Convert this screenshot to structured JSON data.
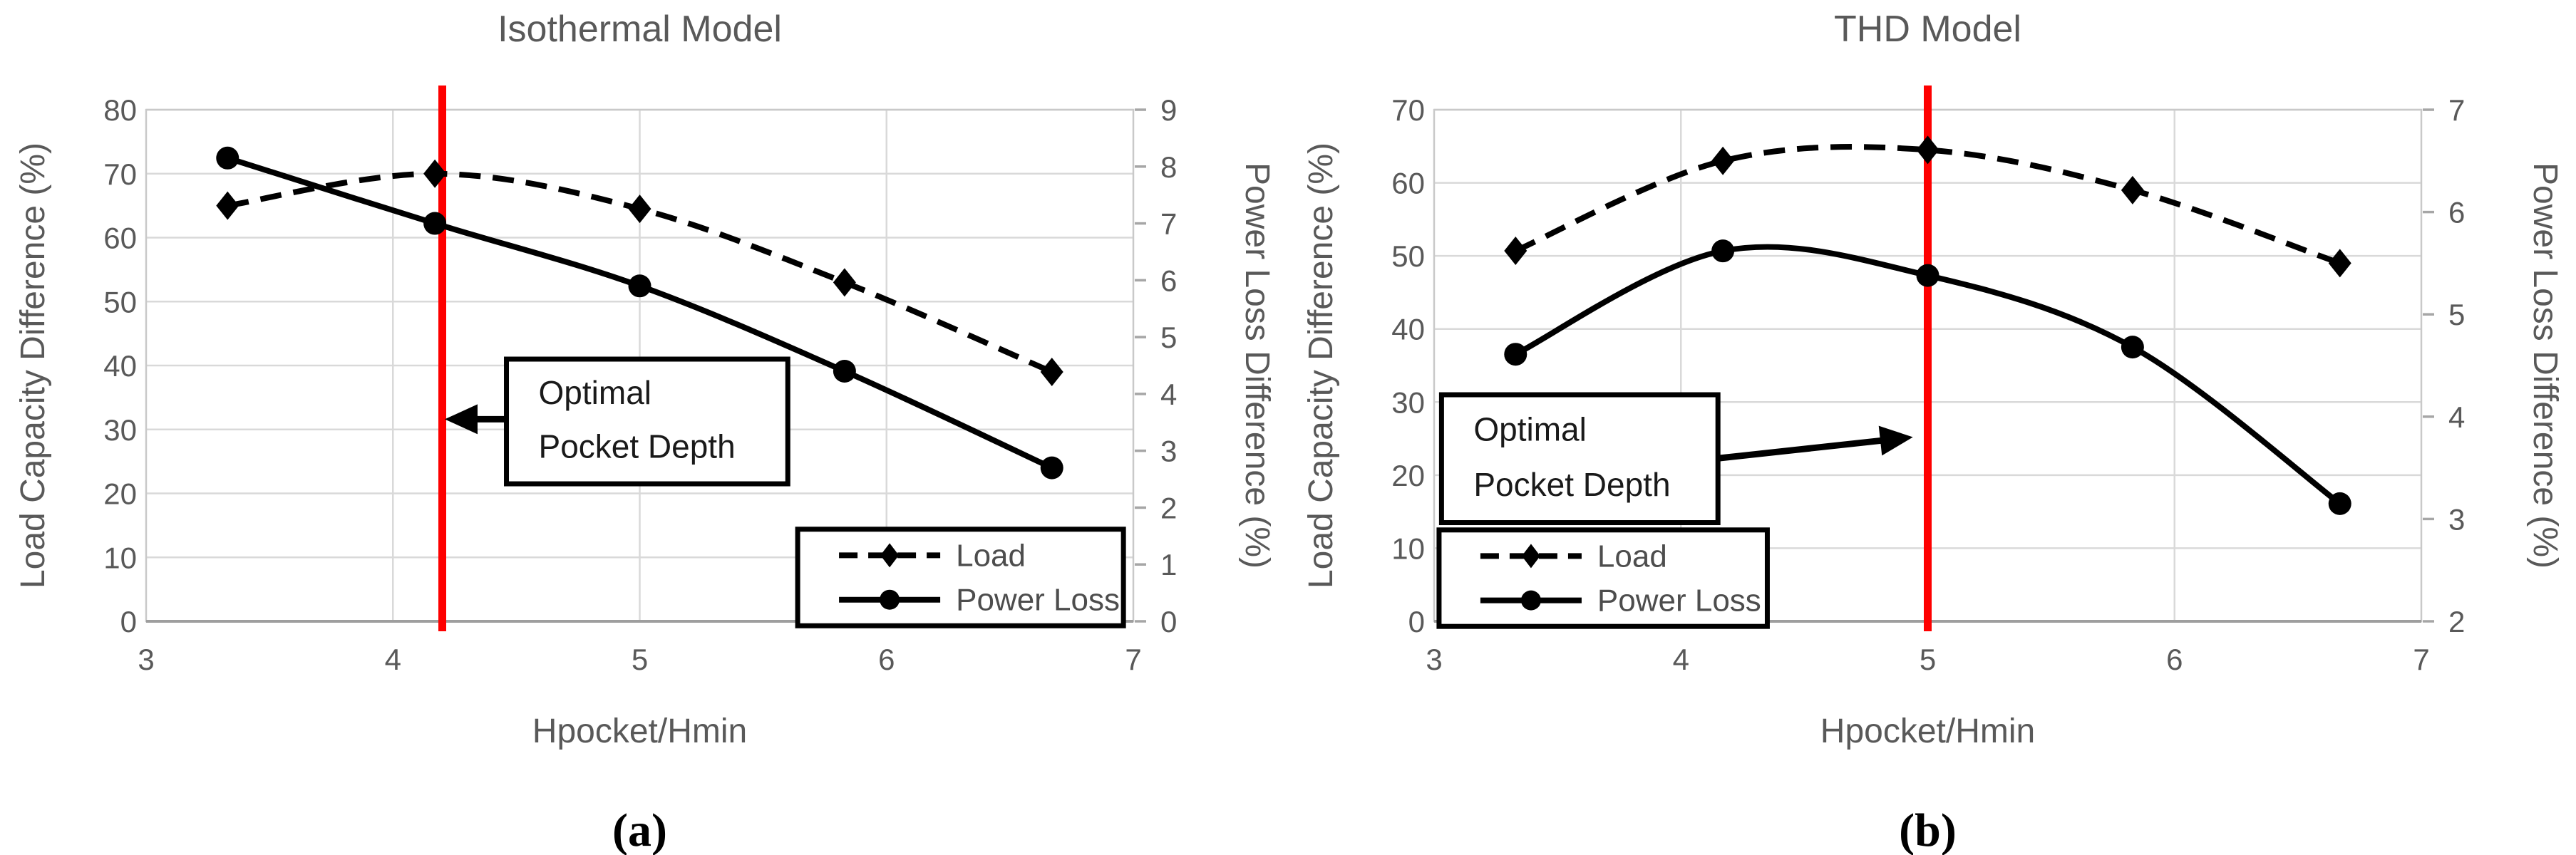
{
  "figure": {
    "captions": [
      "(a)",
      "(b)"
    ]
  },
  "colors": {
    "background": "#ffffff",
    "title_text": "#595959",
    "tick_label": "#595959",
    "axis_title": "#595959",
    "legend_text": "#4d4d4d",
    "annotation_text": "#1a1a1a",
    "gridline": "#d9d9d9",
    "plot_border": "#c9c9c9",
    "axis_line": "#9e9e9e",
    "tick_mark": "#a6a6a6",
    "series_color": "#000000",
    "red_line": "#fe0000",
    "box_border": "#000000",
    "box_fill": "#ffffff"
  },
  "chart_data": [
    {
      "type": "line",
      "title": "Isothermal Model",
      "caption": "(a)",
      "xlabel": "Hpocket/Hmin",
      "ylabel_left": "Load Capacity Difference (%)",
      "ylabel_right": "Power Loss Difference (%)",
      "xlim": [
        3,
        7
      ],
      "xticks": [
        3,
        4,
        5,
        6,
        7
      ],
      "ylim_left": [
        0,
        80
      ],
      "yticks_left": [
        0,
        10,
        20,
        30,
        40,
        50,
        60,
        70,
        80
      ],
      "ylim_right": [
        0,
        9
      ],
      "yticks_right": [
        0,
        1,
        2,
        3,
        4,
        5,
        6,
        7,
        8,
        9
      ],
      "grid": true,
      "legend_position": "bottom-right",
      "red_marker_line_x": 4.2,
      "x": [
        3.33,
        4.17,
        5.0,
        5.83,
        6.67
      ],
      "series": [
        {
          "name": "Load",
          "axis": "left",
          "line": "dashed",
          "marker": "diamond",
          "values": [
            65,
            70,
            64.5,
            53,
            39
          ]
        },
        {
          "name": "Power Loss",
          "axis": "right",
          "line": "solid",
          "marker": "circle",
          "values": [
            8.15,
            7.0,
            5.9,
            4.4,
            2.7
          ]
        }
      ],
      "annotation": {
        "lines": [
          "Optimal",
          "Pocket Depth"
        ],
        "box_x": [
          4.46,
          5.6
        ],
        "box_y": [
          21.5,
          41
        ],
        "arrow_from": [
          4.46,
          31.6
        ],
        "arrow_to": [
          4.21,
          31.6
        ]
      },
      "legend": {
        "box_x": [
          5.64,
          6.96
        ],
        "box_y": [
          -0.7,
          14.4
        ]
      }
    },
    {
      "type": "line",
      "title": "THD Model",
      "caption": "(b)",
      "xlabel": "Hpocket/Hmin",
      "ylabel_left": "Load Capacity Difference (%)",
      "ylabel_right": "Power Loss Difference (%)",
      "xlim": [
        3,
        7
      ],
      "xticks": [
        3,
        4,
        5,
        6,
        7
      ],
      "ylim_left": [
        0,
        70
      ],
      "yticks_left": [
        0,
        10,
        20,
        30,
        40,
        50,
        60,
        70
      ],
      "ylim_right": [
        2,
        7
      ],
      "yticks_right": [
        2,
        3,
        4,
        5,
        6,
        7
      ],
      "grid": true,
      "legend_position": "bottom-left",
      "red_marker_line_x": 5.0,
      "x": [
        3.33,
        4.17,
        5.0,
        5.83,
        6.67
      ],
      "series": [
        {
          "name": "Load",
          "axis": "left",
          "line": "dashed",
          "marker": "diamond",
          "values": [
            50.7,
            63,
            64.5,
            59,
            49
          ]
        },
        {
          "name": "Power Loss",
          "axis": "right",
          "line": "solid",
          "marker": "circle",
          "values": [
            4.61,
            5.62,
            5.38,
            4.68,
            3.15
          ]
        }
      ],
      "annotation": {
        "lines": [
          "Optimal",
          "Pocket Depth"
        ],
        "box_x": [
          3.03,
          4.15
        ],
        "box_y": [
          13.5,
          31
        ],
        "arrow_from": [
          4.15,
          22.3
        ],
        "arrow_to": [
          4.94,
          25.2
        ]
      },
      "legend": {
        "box_x": [
          3.02,
          4.35
        ],
        "box_y": [
          -0.7,
          12.5
        ]
      }
    }
  ]
}
